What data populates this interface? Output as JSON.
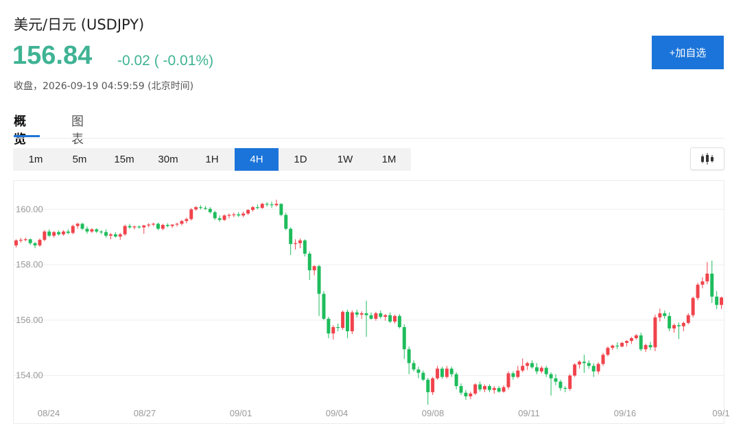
{
  "header": {
    "title": "美元/日元 (USDJPY)",
    "price": "156.84",
    "change": "-0.02 ( -0.01%)",
    "status": "收盘，2026-09-19 04:59:59 (北京时间)",
    "add_button": "+加自选"
  },
  "tabs": [
    "概览",
    "图表"
  ],
  "periods": [
    "1m",
    "5m",
    "15m",
    "30m",
    "1H",
    "4H",
    "1D",
    "1W",
    "1M"
  ],
  "active_period": "4H",
  "colors": {
    "up": "#f0434c",
    "down": "#1ebc5c",
    "accent": "#1b74d9",
    "price": "#3fb394"
  },
  "chart_data": {
    "type": "candlestick",
    "title": "",
    "ylim": [
      153.0,
      160.8
    ],
    "y_ticks": [
      "160.00",
      "158.00",
      "156.00",
      "154.00"
    ],
    "x_tick_labels": [
      "08/24",
      "08/27",
      "09/01",
      "09/04",
      "09/08",
      "09/11",
      "09/16",
      "09/1"
    ],
    "candles_ohlc": [
      [
        158.7,
        158.92,
        158.62,
        158.88
      ],
      [
        158.88,
        158.97,
        158.8,
        158.9
      ],
      [
        158.9,
        158.98,
        158.85,
        158.92
      ],
      [
        158.92,
        158.95,
        158.72,
        158.78
      ],
      [
        158.78,
        158.82,
        158.6,
        158.7
      ],
      [
        158.7,
        158.95,
        158.65,
        158.9
      ],
      [
        158.9,
        159.25,
        158.85,
        159.2
      ],
      [
        159.2,
        159.28,
        159.0,
        159.05
      ],
      [
        159.05,
        159.22,
        158.98,
        159.18
      ],
      [
        159.18,
        159.24,
        159.05,
        159.1
      ],
      [
        159.1,
        159.25,
        159.05,
        159.2
      ],
      [
        159.2,
        159.28,
        159.1,
        159.15
      ],
      [
        159.15,
        159.45,
        159.1,
        159.4
      ],
      [
        159.4,
        159.52,
        159.3,
        159.48
      ],
      [
        159.48,
        159.52,
        159.25,
        159.3
      ],
      [
        159.3,
        159.38,
        159.12,
        159.2
      ],
      [
        159.2,
        159.32,
        159.15,
        159.28
      ],
      [
        159.28,
        159.32,
        159.15,
        159.2
      ],
      [
        159.2,
        159.25,
        159.1,
        159.18
      ],
      [
        159.18,
        159.28,
        158.98,
        159.05
      ],
      [
        159.05,
        159.15,
        158.92,
        159.1
      ],
      [
        159.1,
        159.18,
        158.98,
        159.02
      ],
      [
        159.02,
        159.15,
        158.9,
        159.1
      ],
      [
        159.1,
        159.45,
        159.05,
        159.4
      ],
      [
        159.4,
        159.48,
        159.3,
        159.35
      ],
      [
        159.35,
        159.42,
        159.28,
        159.38
      ],
      [
        159.38,
        159.42,
        159.3,
        159.35
      ],
      [
        159.35,
        159.44,
        159.12,
        159.42
      ],
      [
        159.42,
        159.5,
        159.35,
        159.45
      ],
      [
        159.45,
        159.52,
        159.4,
        159.48
      ],
      [
        159.48,
        159.52,
        159.25,
        159.3
      ],
      [
        159.3,
        159.48,
        159.25,
        159.44
      ],
      [
        159.44,
        159.5,
        159.35,
        159.4
      ],
      [
        159.4,
        159.46,
        159.33,
        159.45
      ],
      [
        159.45,
        159.52,
        159.38,
        159.48
      ],
      [
        159.48,
        159.62,
        159.42,
        159.58
      ],
      [
        159.58,
        159.7,
        159.5,
        159.65
      ],
      [
        159.65,
        160.05,
        159.6,
        160.0
      ],
      [
        160.0,
        160.12,
        159.95,
        160.08
      ],
      [
        160.08,
        160.15,
        160.0,
        160.05
      ],
      [
        160.05,
        160.12,
        159.98,
        160.02
      ],
      [
        160.02,
        160.08,
        159.85,
        159.9
      ],
      [
        159.9,
        159.95,
        159.62,
        159.68
      ],
      [
        159.68,
        159.78,
        159.55,
        159.62
      ],
      [
        159.62,
        159.82,
        159.58,
        159.78
      ],
      [
        159.78,
        159.85,
        159.68,
        159.8
      ],
      [
        159.8,
        159.88,
        159.72,
        159.82
      ],
      [
        159.82,
        159.9,
        159.72,
        159.78
      ],
      [
        159.78,
        159.92,
        159.72,
        159.85
      ],
      [
        159.85,
        160.0,
        159.8,
        159.98
      ],
      [
        159.98,
        160.12,
        159.92,
        160.08
      ],
      [
        160.08,
        160.18,
        160.0,
        160.05
      ],
      [
        160.05,
        160.24,
        160.02,
        160.2
      ],
      [
        160.2,
        160.26,
        160.1,
        160.18
      ],
      [
        160.18,
        160.28,
        160.05,
        160.15
      ],
      [
        160.15,
        160.35,
        160.1,
        160.2
      ],
      [
        160.2,
        160.22,
        159.75,
        159.8
      ],
      [
        159.8,
        159.88,
        159.25,
        159.3
      ],
      [
        159.3,
        159.35,
        158.35,
        158.75
      ],
      [
        158.75,
        158.92,
        158.55,
        158.78
      ],
      [
        158.78,
        158.95,
        158.6,
        158.88
      ],
      [
        158.88,
        158.92,
        158.3,
        158.4
      ],
      [
        158.4,
        158.48,
        157.45,
        157.8
      ],
      [
        157.8,
        157.98,
        157.62,
        157.95
      ],
      [
        157.95,
        158.0,
        156.15,
        156.95
      ],
      [
        156.95,
        157.05,
        156.0,
        156.05
      ],
      [
        156.05,
        156.12,
        155.35,
        155.52
      ],
      [
        155.52,
        155.82,
        155.3,
        155.75
      ],
      [
        155.75,
        155.88,
        155.6,
        155.72
      ],
      [
        155.72,
        156.35,
        155.65,
        156.3
      ],
      [
        156.3,
        156.38,
        155.35,
        155.6
      ],
      [
        155.6,
        156.35,
        155.5,
        156.28
      ],
      [
        156.28,
        156.38,
        156.1,
        156.2
      ],
      [
        156.2,
        156.32,
        156.05,
        156.25
      ],
      [
        156.25,
        156.7,
        155.4,
        156.18
      ],
      [
        156.18,
        156.28,
        156.02,
        156.05
      ],
      [
        156.05,
        156.3,
        155.98,
        156.25
      ],
      [
        156.25,
        156.35,
        156.05,
        156.12
      ],
      [
        156.12,
        156.22,
        155.98,
        156.18
      ],
      [
        156.18,
        156.28,
        155.9,
        155.95
      ],
      [
        155.95,
        156.2,
        155.88,
        156.15
      ],
      [
        156.15,
        156.22,
        155.7,
        155.75
      ],
      [
        155.75,
        155.85,
        154.6,
        154.95
      ],
      [
        154.95,
        155.05,
        154.05,
        154.45
      ],
      [
        154.45,
        154.55,
        154.15,
        154.22
      ],
      [
        154.22,
        154.32,
        153.9,
        154.1
      ],
      [
        154.1,
        154.18,
        153.8,
        153.85
      ],
      [
        153.85,
        153.92,
        152.95,
        153.4
      ],
      [
        153.4,
        153.95,
        153.3,
        153.9
      ],
      [
        153.9,
        154.35,
        153.85,
        154.25
      ],
      [
        154.25,
        154.32,
        153.88,
        153.95
      ],
      [
        153.95,
        154.35,
        153.9,
        154.25
      ],
      [
        154.25,
        154.32,
        153.95,
        154.05
      ],
      [
        154.05,
        154.12,
        153.5,
        153.62
      ],
      [
        153.62,
        153.72,
        153.3,
        153.38
      ],
      [
        153.38,
        153.48,
        153.12,
        153.25
      ],
      [
        153.25,
        153.42,
        153.15,
        153.35
      ],
      [
        153.35,
        153.72,
        153.3,
        153.68
      ],
      [
        153.68,
        153.78,
        153.42,
        153.5
      ],
      [
        153.5,
        153.68,
        153.4,
        153.62
      ],
      [
        153.62,
        153.68,
        153.4,
        153.48
      ],
      [
        153.48,
        153.62,
        153.35,
        153.55
      ],
      [
        153.55,
        153.62,
        153.38,
        153.42
      ],
      [
        153.42,
        153.65,
        153.38,
        153.58
      ],
      [
        153.58,
        154.15,
        153.5,
        154.08
      ],
      [
        154.08,
        154.15,
        153.85,
        153.95
      ],
      [
        153.95,
        154.35,
        153.9,
        154.18
      ],
      [
        154.18,
        154.62,
        154.12,
        154.35
      ],
      [
        154.35,
        154.5,
        154.2,
        154.45
      ],
      [
        154.45,
        154.55,
        154.25,
        154.3
      ],
      [
        154.3,
        154.45,
        154.05,
        154.15
      ],
      [
        154.15,
        154.35,
        154.08,
        154.28
      ],
      [
        154.28,
        154.35,
        153.95,
        154.05
      ],
      [
        154.05,
        154.12,
        153.28,
        153.9
      ],
      [
        153.9,
        154.05,
        153.65,
        153.78
      ],
      [
        153.78,
        153.85,
        153.45,
        153.55
      ],
      [
        153.55,
        153.62,
        153.4,
        153.52
      ],
      [
        153.52,
        154.05,
        153.45,
        154.0
      ],
      [
        154.0,
        154.45,
        153.95,
        154.4
      ],
      [
        154.4,
        154.55,
        154.25,
        154.5
      ],
      [
        154.5,
        154.75,
        154.1,
        154.45
      ],
      [
        154.45,
        154.55,
        154.25,
        154.35
      ],
      [
        154.35,
        154.45,
        153.95,
        154.15
      ],
      [
        154.15,
        154.48,
        154.05,
        154.42
      ],
      [
        154.42,
        154.82,
        154.35,
        154.75
      ],
      [
        154.75,
        155.05,
        154.7,
        155.0
      ],
      [
        155.0,
        155.12,
        154.92,
        155.08
      ],
      [
        155.08,
        155.2,
        154.95,
        155.05
      ],
      [
        155.05,
        155.22,
        155.02,
        155.18
      ],
      [
        155.18,
        155.28,
        155.05,
        155.25
      ],
      [
        155.25,
        155.4,
        155.15,
        155.35
      ],
      [
        155.35,
        155.5,
        155.3,
        155.45
      ],
      [
        155.45,
        155.55,
        154.88,
        154.95
      ],
      [
        154.95,
        155.15,
        154.85,
        155.1
      ],
      [
        155.1,
        155.22,
        154.92,
        155.02
      ],
      [
        155.02,
        156.2,
        154.88,
        156.1
      ],
      [
        156.1,
        156.42,
        155.95,
        156.25
      ],
      [
        156.25,
        156.35,
        156.05,
        156.15
      ],
      [
        156.15,
        156.28,
        155.6,
        155.7
      ],
      [
        155.7,
        155.88,
        155.55,
        155.82
      ],
      [
        155.82,
        155.92,
        155.32,
        155.78
      ],
      [
        155.78,
        155.95,
        155.6,
        155.9
      ],
      [
        155.9,
        156.25,
        155.85,
        156.18
      ],
      [
        156.18,
        156.85,
        156.1,
        156.8
      ],
      [
        156.8,
        157.35,
        156.72,
        157.28
      ],
      [
        157.28,
        157.55,
        157.15,
        157.4
      ],
      [
        157.4,
        158.1,
        157.3,
        157.68
      ],
      [
        157.68,
        158.15,
        156.62,
        156.85
      ],
      [
        156.85,
        157.05,
        156.4,
        156.55
      ],
      [
        156.55,
        156.85,
        156.4,
        156.82
      ]
    ]
  }
}
